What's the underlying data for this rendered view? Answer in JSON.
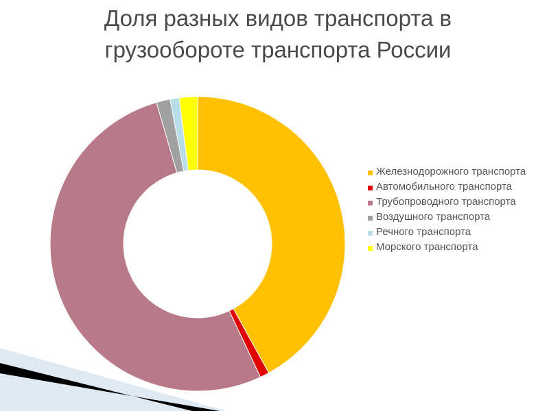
{
  "title": "Доля разных видов транспорта в грузообороте транспорта России",
  "chart_data": {
    "type": "pie",
    "style": "doughnut",
    "unit": "%",
    "legend_position": "right",
    "series": [
      {
        "name": "Железнодорожного транспорта",
        "value": 42,
        "color": "#ffc000"
      },
      {
        "name": "Автомобильного транспорта",
        "value": 1,
        "color": "#e00000"
      },
      {
        "name": "Трубопроводного транспорта",
        "value": 52.5,
        "color": "#b87989"
      },
      {
        "name": "Воздушного транспорта",
        "value": 1.5,
        "color": "#a0a0a0"
      },
      {
        "name": "Речного транспорта",
        "value": 1,
        "color": "#b7dde8"
      },
      {
        "name": "Морского транспорта",
        "value": 2,
        "color": "#ffff00"
      }
    ]
  }
}
